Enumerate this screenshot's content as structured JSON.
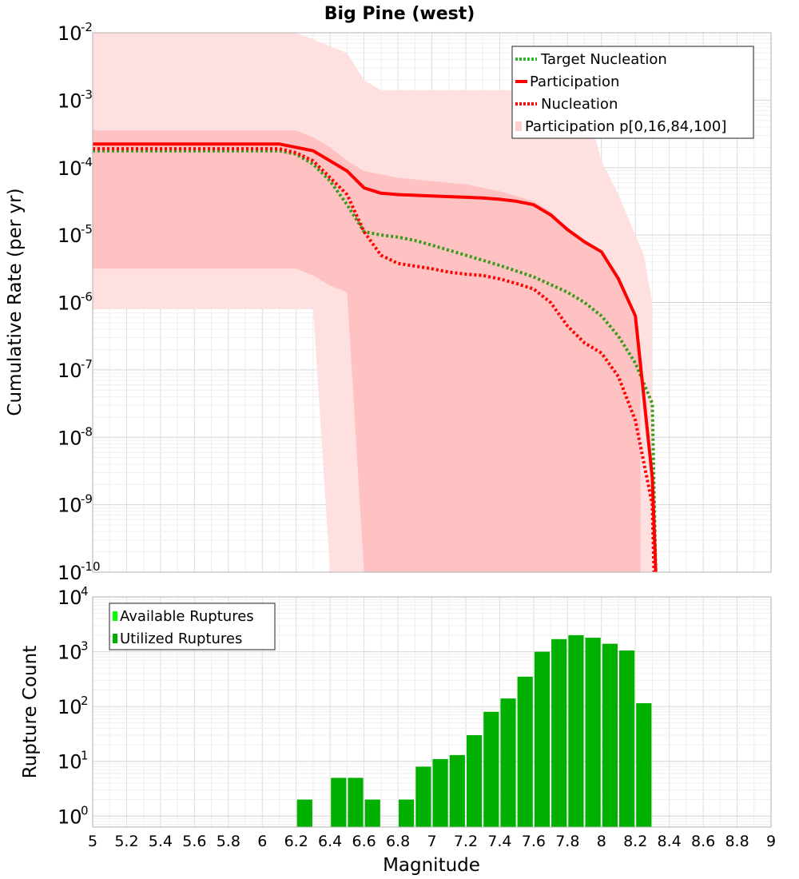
{
  "title": "Big Pine (west)",
  "chart_data": [
    {
      "type": "line",
      "ylabel": "Cumulative Rate (per yr)",
      "xlim": [
        5,
        9
      ],
      "ylim_log10": [
        -10,
        -2
      ],
      "yscale": "log",
      "grid": true,
      "legend_placement": "top-right",
      "ytick_base": "10",
      "yticks_exp": [
        "-10",
        "-9",
        "-8",
        "-7",
        "-6",
        "-5",
        "-4",
        "-3",
        "-2"
      ],
      "bands": [
        {
          "name": "Participation p[0,16,84,100]",
          "kind": "outer",
          "color": "#ffe0e0",
          "x": [
            5,
            6.1,
            6.2,
            6.3,
            6.4,
            6.5,
            6.6,
            6.7,
            7.6,
            7.9,
            8.0,
            8.1,
            8.2,
            8.25,
            8.3
          ],
          "upper": [
            -2,
            -2,
            -2,
            -2.1,
            -2.2,
            -2.3,
            -2.7,
            -2.85,
            -2.85,
            -2.95,
            -3.9,
            -4.4,
            -5.0,
            -5.3,
            -6.0
          ],
          "lower": [
            -6.1,
            -6.1,
            -6.1,
            -6.1,
            -10,
            -10,
            -10,
            -10,
            -10,
            -10,
            -10,
            -10,
            -10,
            -10,
            -10
          ]
        },
        {
          "name": "Participation p[0,16,84,100]",
          "kind": "inner",
          "color": "#ffc2c2",
          "x": [
            5,
            6.1,
            6.2,
            6.3,
            6.4,
            6.5,
            6.6,
            6.7,
            6.8,
            7.0,
            7.2,
            7.4,
            7.6,
            7.7,
            7.8,
            7.9,
            8.0,
            8.1,
            8.2,
            8.23
          ],
          "upper": [
            -3.45,
            -3.45,
            -3.45,
            -3.55,
            -3.7,
            -3.9,
            -4.05,
            -4.1,
            -4.15,
            -4.2,
            -4.25,
            -4.35,
            -4.5,
            -4.65,
            -4.9,
            -5.1,
            -5.3,
            -5.7,
            -6.3,
            -6.6
          ],
          "lower": [
            -5.5,
            -5.5,
            -5.5,
            -5.6,
            -5.75,
            -5.85,
            -10,
            -10,
            -10,
            -10,
            -10,
            -10,
            -10,
            -10,
            -10,
            -10,
            -10,
            -10,
            -10,
            -10
          ]
        }
      ],
      "series": [
        {
          "name": "Target Nucleation",
          "color": "#3a9a1a",
          "style": "dotted",
          "x": [
            5,
            6.1,
            6.2,
            6.3,
            6.4,
            6.5,
            6.6,
            6.7,
            6.8,
            6.9,
            7.0,
            7.2,
            7.4,
            7.6,
            7.8,
            7.9,
            8.0,
            8.1,
            8.2,
            8.3,
            8.32
          ],
          "logy": [
            -3.75,
            -3.75,
            -3.8,
            -3.95,
            -4.2,
            -4.55,
            -4.95,
            -5.0,
            -5.03,
            -5.08,
            -5.15,
            -5.3,
            -5.45,
            -5.62,
            -5.85,
            -6.0,
            -6.2,
            -6.5,
            -6.9,
            -7.5,
            -10
          ]
        },
        {
          "name": "Participation",
          "color": "#ff0000",
          "style": "solid",
          "x": [
            5,
            6.1,
            6.2,
            6.3,
            6.4,
            6.5,
            6.6,
            6.7,
            6.8,
            7.0,
            7.2,
            7.3,
            7.4,
            7.5,
            7.6,
            7.7,
            7.8,
            7.9,
            8.0,
            8.1,
            8.2,
            8.3,
            8.32
          ],
          "logy": [
            -3.65,
            -3.65,
            -3.7,
            -3.75,
            -3.9,
            -4.05,
            -4.3,
            -4.38,
            -4.4,
            -4.42,
            -4.44,
            -4.45,
            -4.47,
            -4.5,
            -4.55,
            -4.7,
            -4.92,
            -5.1,
            -5.25,
            -5.65,
            -6.2,
            -8.6,
            -10
          ]
        },
        {
          "name": "Nucleation",
          "color": "#ff0000",
          "style": "dotted",
          "x": [
            5,
            6.1,
            6.2,
            6.3,
            6.4,
            6.5,
            6.6,
            6.7,
            6.8,
            7.0,
            7.1,
            7.2,
            7.3,
            7.4,
            7.5,
            7.6,
            7.7,
            7.8,
            7.9,
            8.0,
            8.1,
            8.2,
            8.3,
            8.31
          ],
          "logy": [
            -3.72,
            -3.72,
            -3.78,
            -3.9,
            -4.15,
            -4.4,
            -4.95,
            -5.3,
            -5.42,
            -5.5,
            -5.55,
            -5.58,
            -5.6,
            -5.65,
            -5.72,
            -5.8,
            -6.0,
            -6.35,
            -6.6,
            -6.75,
            -7.1,
            -7.75,
            -9.0,
            -10
          ]
        }
      ],
      "legend": [
        {
          "label": "Target Nucleation",
          "color": "#2db52d",
          "style": "dotted"
        },
        {
          "label": "Participation",
          "color": "#ff0000",
          "style": "solid"
        },
        {
          "label": "Nucleation",
          "color": "#ff0000",
          "style": "dotted"
        },
        {
          "label": "Participation p[0,16,84,100]",
          "color": "#ffd0d0",
          "style": "band"
        }
      ]
    },
    {
      "type": "bar",
      "xlabel": "Magnitude",
      "ylabel": "Rupture Count",
      "xlim": [
        5,
        9
      ],
      "ylim_log10": [
        -0.2,
        4
      ],
      "yscale": "log",
      "grid": true,
      "legend_placement": "top-left",
      "bar_width": 0.1,
      "ytick_base": "10",
      "yticks_exp": [
        "0",
        "1",
        "2",
        "3",
        "4"
      ],
      "xticks": [
        "5",
        "5.2",
        "5.4",
        "5.6",
        "5.8",
        "6",
        "6.2",
        "6.4",
        "6.6",
        "6.8",
        "7",
        "7.2",
        "7.4",
        "7.6",
        "7.8",
        "8",
        "8.2",
        "8.4",
        "8.6",
        "8.8",
        "9"
      ],
      "series": [
        {
          "name": "Utilized Ruptures",
          "color": "#00b000",
          "x": [
            6.25,
            6.45,
            6.55,
            6.65,
            6.85,
            6.95,
            7.05,
            7.15,
            7.25,
            7.35,
            7.45,
            7.55,
            7.65,
            7.75,
            7.85,
            7.95,
            8.05,
            8.15,
            8.25
          ],
          "values": [
            2,
            5,
            5,
            2,
            2,
            8,
            11,
            13,
            30,
            80,
            140,
            350,
            1000,
            1700,
            2000,
            1800,
            1400,
            1050,
            115
          ]
        }
      ],
      "legend": [
        {
          "label": "Available Ruptures",
          "color": "#00ff00"
        },
        {
          "label": "Utilized Ruptures",
          "color": "#00b000"
        }
      ]
    }
  ]
}
